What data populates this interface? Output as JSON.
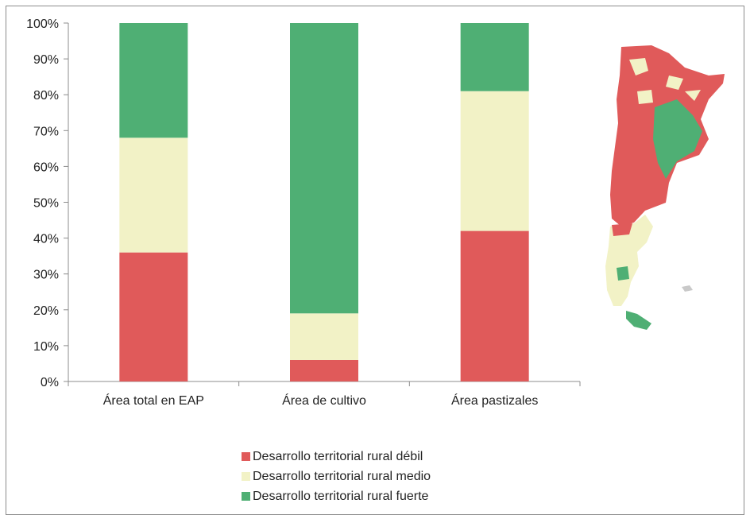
{
  "chart_data": {
    "type": "bar",
    "stacked": true,
    "percent": true,
    "categories": [
      "Área total en EAP",
      "Área de cultivo",
      "Área pastizales"
    ],
    "series": [
      {
        "name": "Desarrollo territorial rural débil",
        "color": "#e05a5a",
        "values": [
          36,
          6,
          42
        ]
      },
      {
        "name": "Desarrollo territorial rural medio",
        "color": "#f2f2c6",
        "values": [
          32,
          13,
          39
        ]
      },
      {
        "name": "Desarrollo territorial rural fuerte",
        "color": "#4faf74",
        "values": [
          32,
          81,
          19
        ]
      }
    ],
    "y_ticks": [
      "0%",
      "10%",
      "20%",
      "30%",
      "40%",
      "50%",
      "60%",
      "70%",
      "80%",
      "90%",
      "100%"
    ],
    "ylim": [
      0,
      100
    ],
    "grid": false,
    "legend_position": "bottom",
    "title": "",
    "xlabel": "",
    "ylabel": ""
  },
  "map": {
    "icon": "argentina-map-icon",
    "colors": {
      "weak": "#e05a5a",
      "medium": "#f2f2c6",
      "strong": "#4faf74"
    }
  }
}
